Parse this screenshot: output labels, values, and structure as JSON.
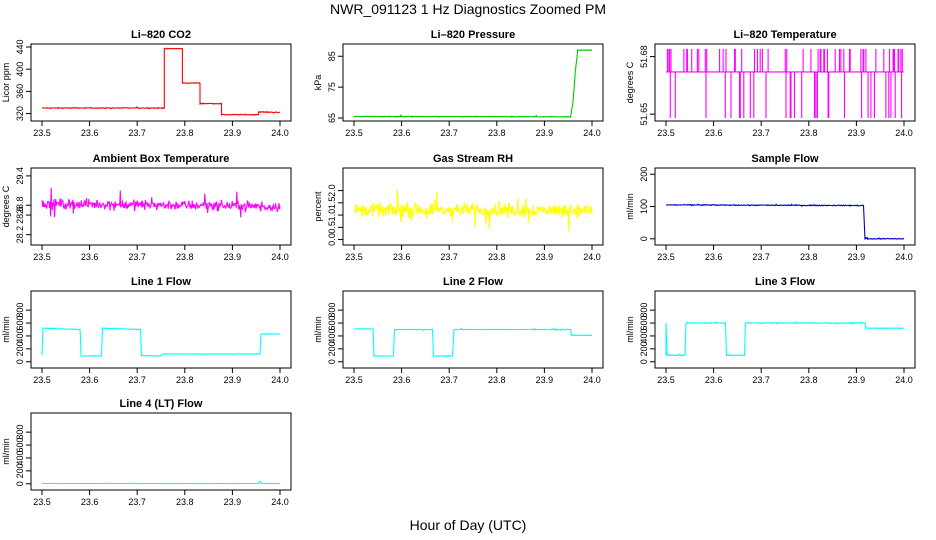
{
  "figure": {
    "title": "NWR_091123  1 Hz Diagnostics Zoomed PM",
    "xlabel": "Hour of Day (UTC)"
  },
  "chart_data": [
    {
      "type": "line",
      "title": "Li–820 CO2",
      "ylabel": "Licor ppm",
      "color": "#ff0000",
      "xlim": [
        23.5,
        24.0
      ],
      "ylim": [
        312,
        440
      ],
      "x_ticks": [
        "23.5",
        "23.6",
        "23.7",
        "23.8",
        "23.9",
        "24.0"
      ],
      "y_ticks": [
        "320",
        "360",
        "400",
        "440"
      ],
      "noise": 1,
      "series": [
        {
          "x": [
            23.5,
            23.757,
            23.757,
            23.795,
            23.795,
            23.832,
            23.832,
            23.877,
            23.877,
            23.955,
            23.955,
            24.0
          ],
          "y": [
            330,
            330,
            437,
            437,
            375,
            375,
            338,
            338,
            318,
            318,
            323,
            322
          ]
        }
      ]
    },
    {
      "type": "line",
      "title": "Li–820 Pressure",
      "ylabel": "kPa",
      "color": "#00cc00",
      "xlim": [
        23.5,
        24.0
      ],
      "ylim": [
        65,
        88
      ],
      "x_ticks": [
        "23.5",
        "23.6",
        "23.7",
        "23.8",
        "23.9",
        "24.0"
      ],
      "y_ticks": [
        "65",
        "75",
        "85"
      ],
      "noise": 0.15,
      "series": [
        {
          "x": [
            23.5,
            23.955,
            23.96,
            23.965,
            23.97,
            24.0
          ],
          "y": [
            65.5,
            65.4,
            70,
            80,
            87,
            87
          ]
        }
      ]
    },
    {
      "type": "line",
      "title": "Li–820 Temperature",
      "ylabel": "degrees C",
      "color": "#ff00ff",
      "xlim": [
        23.5,
        24.0
      ],
      "ylim": [
        51.648,
        51.685
      ],
      "x_ticks": [
        "23.5",
        "23.6",
        "23.7",
        "23.8",
        "23.9",
        "24.0"
      ],
      "y_ticks": [
        "51.65",
        "51.68"
      ],
      "base": 51.672,
      "levels": [
        51.684,
        51.648
      ],
      "note": "quantized sensor: baseline with frequent spikes to upper and lower levels",
      "series": [
        {
          "x": [
            23.5,
            24.0
          ],
          "y": [
            51.672,
            51.672
          ]
        }
      ]
    },
    {
      "type": "line",
      "title": "Ambient Box Temperature",
      "ylabel": "degrees C",
      "color": "#ff00ff",
      "xlim": [
        23.5,
        24.0
      ],
      "ylim": [
        28.05,
        29.5
      ],
      "x_ticks": [
        "23.5",
        "23.6",
        "23.7",
        "23.8",
        "23.9",
        "24.0"
      ],
      "y_ticks": [
        "28.2",
        "28.6",
        "28.8",
        "29.4"
      ],
      "noise": 0.15,
      "series": [
        {
          "x": [
            23.5,
            24.0
          ],
          "y": [
            28.83,
            28.78
          ]
        }
      ]
    },
    {
      "type": "line",
      "title": "Gas Stream RH",
      "ylabel": "percent",
      "color": "#ffff00",
      "xlim": [
        23.5,
        24.0
      ],
      "ylim": [
        -0.1,
        2.8
      ],
      "x_ticks": [
        "23.5",
        "23.6",
        "23.7",
        "23.8",
        "23.9",
        "24.0"
      ],
      "y_ticks": [
        "0.0",
        "0.5",
        "1.0",
        "1.5",
        "2.0"
      ],
      "noise": 0.4,
      "series": [
        {
          "x": [
            23.5,
            24.0
          ],
          "y": [
            1.2,
            1.2
          ]
        }
      ]
    },
    {
      "type": "line",
      "title": "Sample Flow",
      "ylabel": "ml/min",
      "color": "#0000cc",
      "xlim": [
        23.5,
        24.0
      ],
      "ylim": [
        -10,
        210
      ],
      "x_ticks": [
        "23.5",
        "23.6",
        "23.7",
        "23.8",
        "23.9",
        "24.0"
      ],
      "y_ticks": [
        "0",
        "100",
        "200"
      ],
      "noise": 2,
      "series": [
        {
          "x": [
            23.5,
            23.915,
            23.918,
            24.0
          ],
          "y": [
            105,
            103,
            0,
            0
          ]
        }
      ]
    },
    {
      "type": "line",
      "title": "Line 1 Flow",
      "ylabel": "ml/min",
      "color": "#00ffff",
      "xlim": [
        23.5,
        24.0
      ],
      "ylim": [
        -50,
        1050
      ],
      "x_ticks": [
        "23.5",
        "23.6",
        "23.7",
        "23.8",
        "23.9",
        "24.0"
      ],
      "y_ticks": [
        "0",
        "200",
        "400",
        "600",
        "800"
      ],
      "noise": 6,
      "series": [
        {
          "x": [
            23.5,
            23.5,
            23.502,
            23.58,
            23.582,
            23.625,
            23.627,
            23.707,
            23.709,
            23.75,
            23.752,
            23.958,
            23.96,
            24.0
          ],
          "y": [
            100,
            100,
            520,
            500,
            90,
            90,
            520,
            500,
            95,
            90,
            120,
            120,
            430,
            430
          ]
        }
      ]
    },
    {
      "type": "line",
      "title": "Line 2 Flow",
      "ylabel": "ml/min",
      "color": "#00ffff",
      "xlim": [
        23.5,
        24.0
      ],
      "ylim": [
        -50,
        1050
      ],
      "x_ticks": [
        "23.5",
        "23.6",
        "23.7",
        "23.8",
        "23.9",
        "24.0"
      ],
      "y_ticks": [
        "0",
        "200",
        "400",
        "600",
        "800"
      ],
      "noise": 6,
      "series": [
        {
          "x": [
            23.5,
            23.54,
            23.542,
            23.583,
            23.585,
            23.665,
            23.667,
            23.707,
            23.71,
            23.955,
            23.957,
            24.0
          ],
          "y": [
            510,
            510,
            90,
            90,
            500,
            500,
            90,
            90,
            500,
            500,
            410,
            410
          ]
        }
      ]
    },
    {
      "type": "line",
      "title": "Line 3 Flow",
      "ylabel": "ml/min",
      "color": "#00ffff",
      "xlim": [
        23.5,
        24.0
      ],
      "ylim": [
        -50,
        1050
      ],
      "x_ticks": [
        "23.5",
        "23.6",
        "23.7",
        "23.8",
        "23.9",
        "24.0"
      ],
      "y_ticks": [
        "0",
        "200",
        "400",
        "600",
        "800"
      ],
      "noise": 8,
      "series": [
        {
          "x": [
            23.5,
            23.5,
            23.502,
            23.54,
            23.542,
            23.625,
            23.627,
            23.665,
            23.667,
            23.918,
            23.92,
            24.0
          ],
          "y": [
            100,
            600,
            100,
            100,
            600,
            600,
            100,
            100,
            600,
            600,
            520,
            520
          ]
        }
      ]
    },
    {
      "type": "line",
      "title": "Line 4 (LT) Flow",
      "ylabel": "ml/min",
      "color": "#00ffff",
      "xlim": [
        23.5,
        24.0
      ],
      "ylim": [
        -50,
        1050
      ],
      "x_ticks": [
        "23.5",
        "23.6",
        "23.7",
        "23.8",
        "23.9",
        "24.0"
      ],
      "y_ticks": [
        "0",
        "200",
        "400",
        "600",
        "800"
      ],
      "noise": 2,
      "series": [
        {
          "x": [
            23.5,
            23.955,
            23.958,
            23.962,
            24.0
          ],
          "y": [
            5,
            5,
            40,
            5,
            5
          ]
        }
      ]
    }
  ]
}
